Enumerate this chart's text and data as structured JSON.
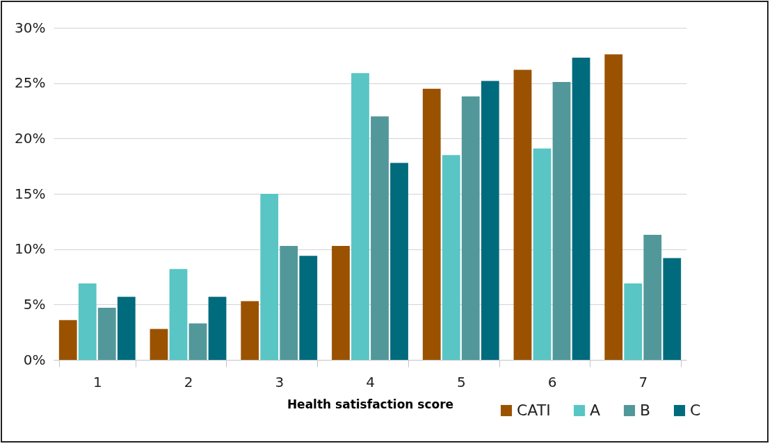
{
  "chart_data": {
    "type": "bar",
    "xlabel": "Health satisfaction score",
    "categories": [
      "1",
      "2",
      "3",
      "4",
      "5",
      "6",
      "7"
    ],
    "series": [
      {
        "name": "CATI",
        "color": "#9a5200",
        "values": [
          3.6,
          2.8,
          5.3,
          10.3,
          24.5,
          26.2,
          27.6
        ]
      },
      {
        "name": "A",
        "color": "#5ac5c5",
        "values": [
          6.9,
          8.2,
          15.0,
          25.9,
          18.5,
          19.1,
          6.9
        ]
      },
      {
        "name": "B",
        "color": "#52979a",
        "values": [
          4.7,
          3.3,
          10.3,
          22.0,
          23.8,
          25.1,
          11.3
        ]
      },
      {
        "name": "C",
        "color": "#006b7c",
        "values": [
          5.7,
          5.7,
          9.4,
          17.8,
          25.2,
          27.3,
          9.2
        ]
      }
    ],
    "ylim": [
      0,
      30
    ],
    "yticks": [
      {
        "value": 0,
        "label": "0%"
      },
      {
        "value": 5,
        "label": "5%"
      },
      {
        "value": 10,
        "label": "10%"
      },
      {
        "value": 15,
        "label": "15%"
      },
      {
        "value": 20,
        "label": "20%"
      },
      {
        "value": 25,
        "label": "25%"
      },
      {
        "value": 30,
        "label": "30%"
      }
    ],
    "grid": "y",
    "legend": "bottom right"
  }
}
